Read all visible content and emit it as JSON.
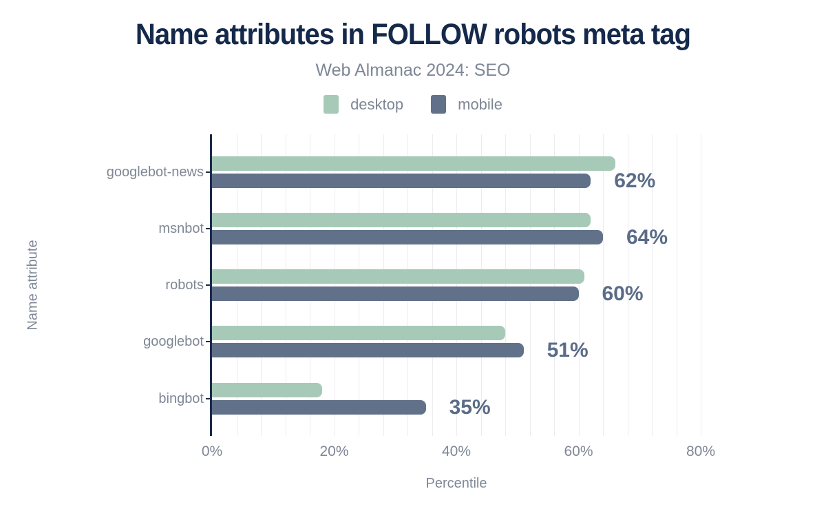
{
  "header": {
    "title": "Name attributes in FOLLOW robots meta tag",
    "subtitle": "Web Almanac 2024: SEO"
  },
  "chart_data": {
    "type": "bar",
    "orientation": "horizontal",
    "title": "Name attributes in FOLLOW robots meta tag",
    "subtitle": "Web Almanac 2024: SEO",
    "categories": [
      "googlebot-news",
      "msnbot",
      "robots",
      "googlebot",
      "bingbot"
    ],
    "series": [
      {
        "name": "desktop",
        "color": "#a7cab8",
        "values": [
          66,
          62,
          61,
          48,
          18
        ]
      },
      {
        "name": "mobile",
        "color": "#61718a",
        "values": [
          62,
          64,
          60,
          51,
          35
        ]
      }
    ],
    "value_labels": [
      "62%",
      "64%",
      "60%",
      "51%",
      "35%"
    ],
    "value_labels_series": "mobile",
    "xlabel": "Percentile",
    "ylabel": "Name attribute",
    "x_ticks": [
      {
        "value": 0,
        "label": "0%"
      },
      {
        "value": 20,
        "label": "20%"
      },
      {
        "value": 40,
        "label": "40%"
      },
      {
        "value": 60,
        "label": "60%"
      },
      {
        "value": 80,
        "label": "80%"
      }
    ],
    "xlim": [
      0,
      80
    ],
    "grid": "vertical, minor every 4%",
    "legend_position": "top"
  },
  "colors": {
    "title": "#15294b",
    "axis": "#1b2a4a",
    "muted_text": "#7e8795",
    "value_label": "#5a6c88",
    "gridline": "#ececf0",
    "background": "#ffffff"
  }
}
